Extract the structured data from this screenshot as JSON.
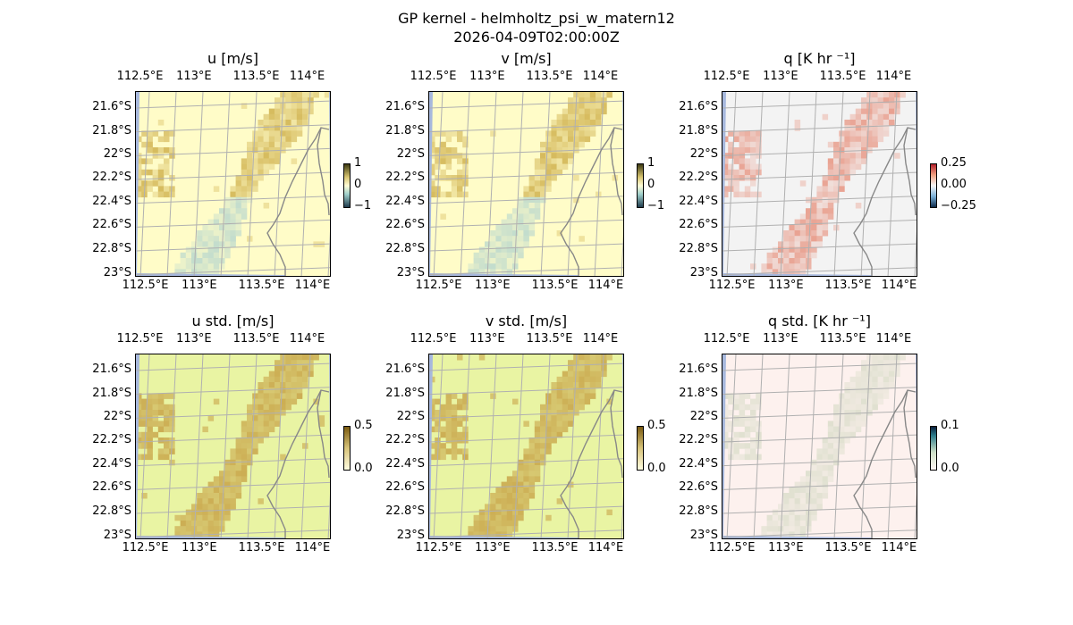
{
  "figure": {
    "title": "GP kernel - helmholtz_psi_w_matern12",
    "timestamp": "2026-04-09T02:00:00Z"
  },
  "colors": {
    "ocean": "#a7b8dd",
    "gridline": "#b0b0b0",
    "coastline": "#888888",
    "field_background_u_v": "#fffcc8",
    "field_background_std": "#e9f4a3",
    "field_background_q": "#f3f3f3",
    "field_background_qstd": "#fdf1ee",
    "positive_u_v": "#c8a53a",
    "negative_u_v": "#a9cfcf",
    "positive_q": "#e26a4e",
    "std_high": "#c9a64b",
    "qstd_high": "#d8dcc8"
  },
  "axes": {
    "lon_ticks": [
      "112.5°E",
      "113°E",
      "113.5°E",
      "114°E"
    ],
    "lat_ticks": [
      "21.6°S",
      "21.8°S",
      "22°S",
      "22.2°S",
      "22.4°S",
      "22.6°S",
      "22.8°S",
      "23°S"
    ]
  },
  "chart_data": [
    {
      "type": "heatmap",
      "title": "u [m/s]",
      "kind": "uv",
      "colorbar_ticks": [
        "1",
        "0",
        "−1"
      ],
      "clim": [
        -1,
        1
      ],
      "x": [
        112.5,
        113.0,
        113.5,
        114.0
      ],
      "y": [
        -21.6,
        -21.8,
        -22.0,
        -22.2,
        -22.4,
        -22.6,
        -22.8,
        -23.0
      ]
    },
    {
      "type": "heatmap",
      "title": "v [m/s]",
      "kind": "uv",
      "colorbar_ticks": [
        "1",
        "0",
        "−1"
      ],
      "clim": [
        -1,
        1
      ],
      "x": [
        112.5,
        113.0,
        113.5,
        114.0
      ],
      "y": [
        -21.6,
        -21.8,
        -22.0,
        -22.2,
        -22.4,
        -22.6,
        -22.8,
        -23.0
      ]
    },
    {
      "type": "heatmap",
      "title": "q [K hr ⁻¹]",
      "kind": "q",
      "colorbar_ticks": [
        "0.25",
        "0.00",
        "−0.25"
      ],
      "clim": [
        -0.35,
        0.35
      ],
      "x": [
        112.5,
        113.0,
        113.5,
        114.0
      ],
      "y": [
        -21.6,
        -21.8,
        -22.0,
        -22.2,
        -22.4,
        -22.6,
        -22.8,
        -23.0
      ]
    },
    {
      "type": "heatmap",
      "title": "u std. [m/s]",
      "kind": "std",
      "colorbar_ticks": [
        "0.5",
        "0.0"
      ],
      "clim": [
        0,
        0.5
      ],
      "x": [
        112.5,
        113.0,
        113.5,
        114.0
      ],
      "y": [
        -21.6,
        -21.8,
        -22.0,
        -22.2,
        -22.4,
        -22.6,
        -22.8,
        -23.0
      ]
    },
    {
      "type": "heatmap",
      "title": "v std. [m/s]",
      "kind": "std",
      "colorbar_ticks": [
        "0.5",
        "0.0"
      ],
      "clim": [
        0,
        0.5
      ],
      "x": [
        112.5,
        113.0,
        113.5,
        114.0
      ],
      "y": [
        -21.6,
        -21.8,
        -22.0,
        -22.2,
        -22.4,
        -22.6,
        -22.8,
        -23.0
      ]
    },
    {
      "type": "heatmap",
      "title": "q std. [K hr ⁻¹]",
      "kind": "qstd",
      "colorbar_ticks": [
        "0.1",
        "0.0"
      ],
      "clim": [
        0,
        0.12
      ],
      "x": [
        112.5,
        113.0,
        113.5,
        114.0
      ],
      "y": [
        -21.6,
        -21.8,
        -22.0,
        -22.2,
        -22.4,
        -22.6,
        -22.8,
        -23.0
      ]
    }
  ]
}
